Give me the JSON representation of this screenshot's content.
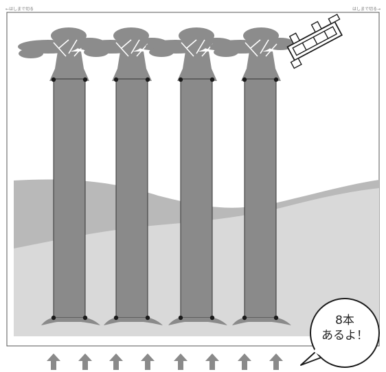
{
  "cut_guides": {
    "left": "←はしまで切る",
    "right": "はしまで切る→"
  },
  "trees": {
    "count": 8,
    "trunk_color": "#8a8a8a",
    "canopy_color": "#8c8c8c"
  },
  "background": {
    "far_hill_color": "#b9b9b9",
    "near_hill_color": "#d9d9d9",
    "frame_color": "#555555"
  },
  "arrows": {
    "count": 8,
    "icon": "up-arrow-icon",
    "color": "#8a8a8a"
  },
  "speech_bubble": {
    "line1": "8本",
    "line2": "あるよ！"
  },
  "decor": {
    "icon": "wooden-fence-icon"
  }
}
